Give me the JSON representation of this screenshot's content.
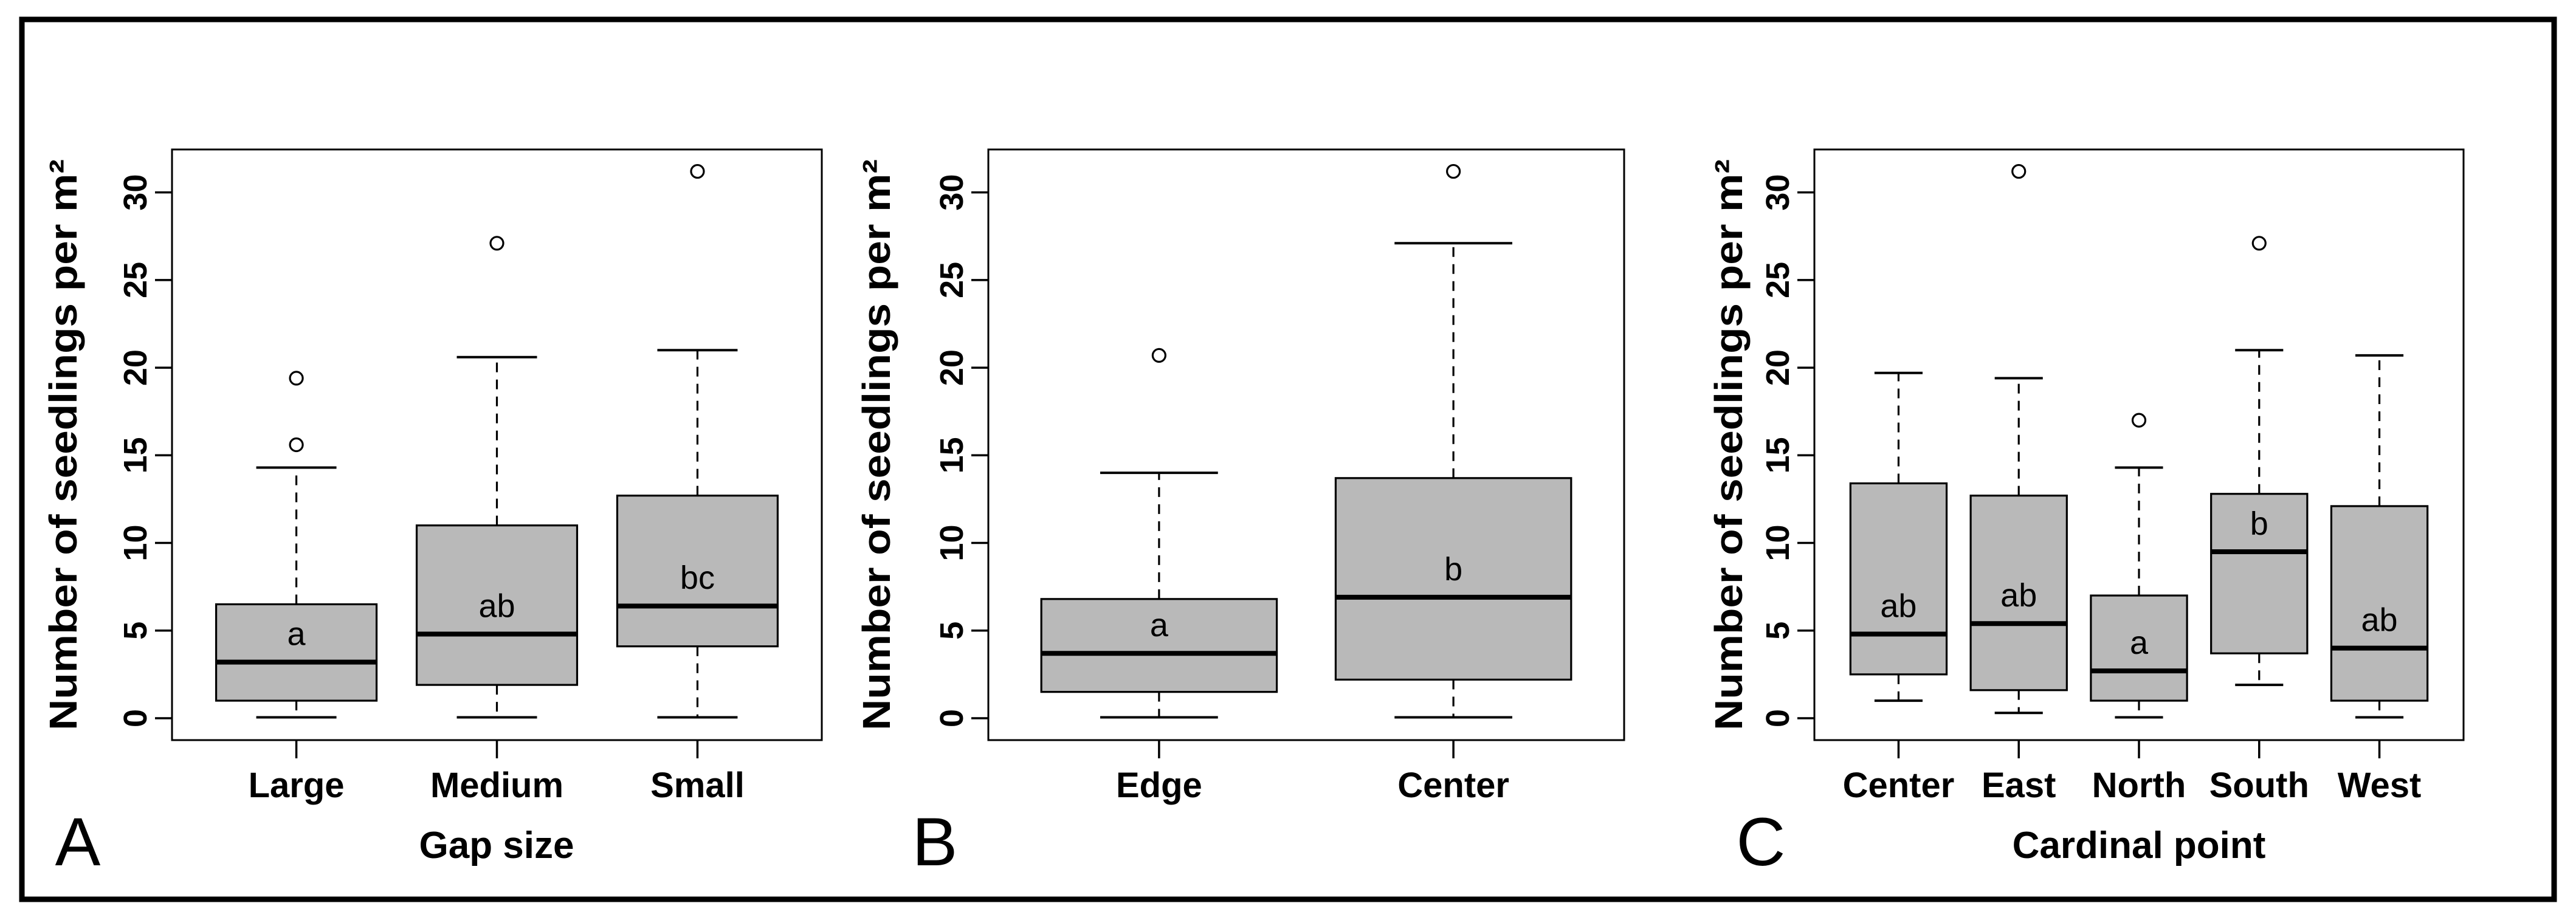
{
  "figure": {
    "background": "#ffffff",
    "frame_color": "#000000",
    "line_color": "#000000",
    "box_fill": "#b9b9b9"
  },
  "chart_data": [
    {
      "type": "box",
      "panel_label": "A",
      "xlabel": "Gap size",
      "ylabel": "Number of seedlings per m²",
      "ylim": [
        -1.25,
        32.45
      ],
      "yticks": [
        0,
        5,
        10,
        15,
        20,
        25,
        30
      ],
      "grid": false,
      "categories": [
        "Large",
        "Medium",
        "Small"
      ],
      "series": [
        {
          "category": "Large",
          "letter": "a",
          "whisker_low": 0.05,
          "q1": 1.0,
          "median": 3.2,
          "q3": 6.5,
          "whisker_high": 14.3,
          "outliers": [
            15.6,
            19.4
          ]
        },
        {
          "category": "Medium",
          "letter": "ab",
          "whisker_low": 0.05,
          "q1": 1.9,
          "median": 4.8,
          "q3": 11.0,
          "whisker_high": 20.6,
          "outliers": [
            27.1
          ]
        },
        {
          "category": "Small",
          "letter": "bc",
          "whisker_low": 0.05,
          "q1": 4.1,
          "median": 6.4,
          "q3": 12.7,
          "whisker_high": 21.0,
          "outliers": [
            31.2
          ]
        }
      ]
    },
    {
      "type": "box",
      "panel_label": "B",
      "xlabel": "",
      "ylabel": "Number of seedlings per m²",
      "ylim": [
        -1.25,
        32.45
      ],
      "yticks": [
        0,
        5,
        10,
        15,
        20,
        25,
        30
      ],
      "grid": false,
      "categories": [
        "Edge",
        "Center"
      ],
      "series": [
        {
          "category": "Edge",
          "letter": "a",
          "whisker_low": 0.05,
          "q1": 1.5,
          "median": 3.7,
          "q3": 6.8,
          "whisker_high": 14.0,
          "outliers": [
            20.7
          ]
        },
        {
          "category": "Center",
          "letter": "b",
          "whisker_low": 0.05,
          "q1": 2.2,
          "median": 6.9,
          "q3": 13.7,
          "whisker_high": 27.1,
          "outliers": [
            31.2
          ]
        }
      ]
    },
    {
      "type": "box",
      "panel_label": "C",
      "xlabel": "Cardinal point",
      "ylabel": "Number of seedlings per m²",
      "ylim": [
        -1.25,
        32.45
      ],
      "yticks": [
        0,
        5,
        10,
        15,
        20,
        25,
        30
      ],
      "grid": false,
      "categories": [
        "Center",
        "East",
        "North",
        "South",
        "West"
      ],
      "series": [
        {
          "category": "Center",
          "letter": "ab",
          "whisker_low": 1.0,
          "q1": 2.5,
          "median": 4.8,
          "q3": 13.4,
          "whisker_high": 19.7,
          "outliers": []
        },
        {
          "category": "East",
          "letter": "ab",
          "whisker_low": 0.3,
          "q1": 1.6,
          "median": 5.4,
          "q3": 12.7,
          "whisker_high": 19.4,
          "outliers": [
            31.2
          ]
        },
        {
          "category": "North",
          "letter": "a",
          "whisker_low": 0.05,
          "q1": 1.0,
          "median": 2.7,
          "q3": 7.0,
          "whisker_high": 14.3,
          "outliers": [
            17.0
          ]
        },
        {
          "category": "South",
          "letter": "b",
          "whisker_low": 1.9,
          "q1": 3.7,
          "median": 9.5,
          "q3": 12.8,
          "whisker_high": 21.0,
          "outliers": [
            27.1
          ]
        },
        {
          "category": "West",
          "letter": "ab",
          "whisker_low": 0.05,
          "q1": 1.0,
          "median": 4.0,
          "q3": 12.1,
          "whisker_high": 20.7,
          "outliers": []
        }
      ]
    }
  ]
}
